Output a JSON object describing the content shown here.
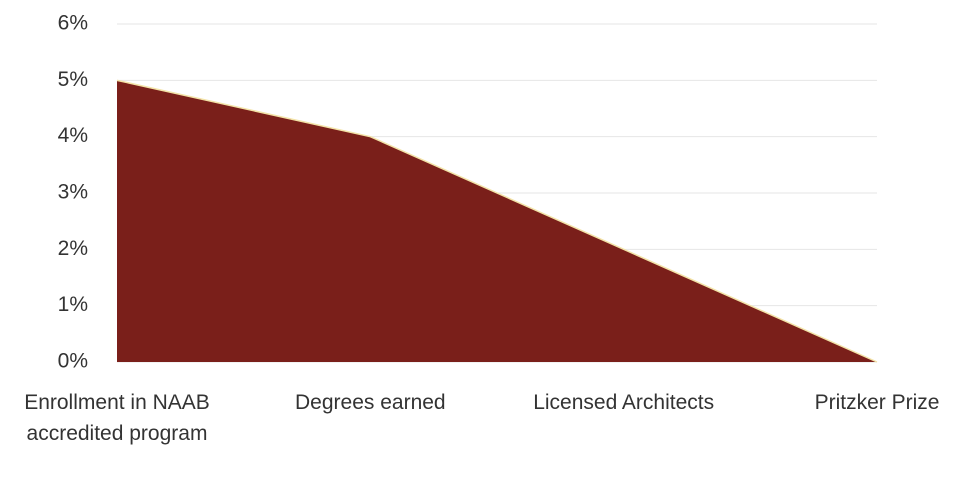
{
  "chart_data": {
    "type": "area",
    "categories": [
      "Enrollment in NAAB accredited program",
      "Degrees earned",
      "Licensed Architects",
      "Pritzker Prize"
    ],
    "values": [
      5,
      4,
      2,
      0
    ],
    "color": "#7a1f1a",
    "ylim": [
      0,
      6
    ],
    "yticks": [
      {
        "value": 0,
        "label": "0%"
      },
      {
        "value": 1,
        "label": "1%"
      },
      {
        "value": 2,
        "label": "2%"
      },
      {
        "value": 3,
        "label": "3%"
      },
      {
        "value": 4,
        "label": "4%"
      },
      {
        "value": 5,
        "label": "5%"
      },
      {
        "value": 6,
        "label": "6%"
      }
    ],
    "grid": true
  }
}
